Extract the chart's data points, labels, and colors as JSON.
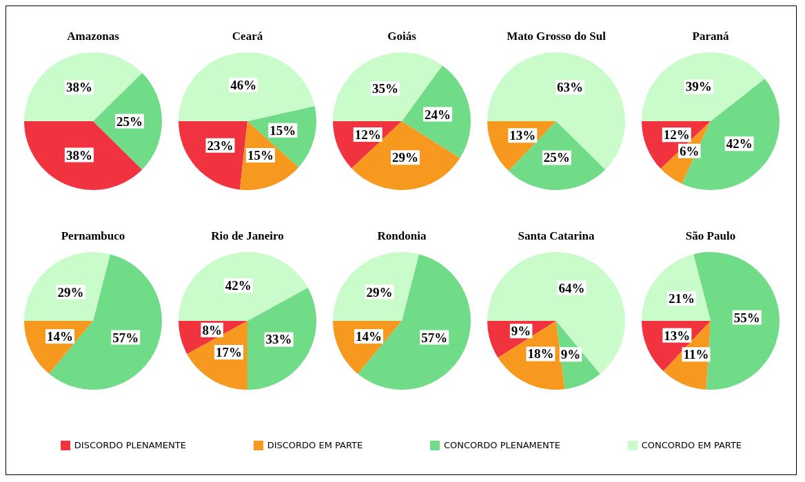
{
  "chart_data": [
    {
      "type": "pie",
      "title": "Amazonas",
      "categories": [
        "DISCORDO PLENAMENTE",
        "DISCORDO EM PARTE",
        "CONCORDO PLENAMENTE",
        "CONCORDO EM PARTE"
      ],
      "values": [
        38,
        0,
        25,
        38
      ],
      "value_labels": [
        "38%",
        null,
        "25%",
        "38%"
      ],
      "colors": [
        "#f0333f",
        "#f7991f",
        "#70dc87",
        "#c9fbcb"
      ],
      "legend": "bottom"
    },
    {
      "type": "pie",
      "title": "Ceará",
      "categories": [
        null,
        null,
        null,
        null
      ],
      "values": [
        23,
        15,
        15,
        46
      ],
      "value_labels": [
        "23%",
        "15%",
        "15%",
        "46%"
      ],
      "colors": [
        "#f0333f",
        "#f7991f",
        "#70dc87",
        "#c9fbcb"
      ]
    },
    {
      "type": "pie",
      "title": "Goiás",
      "categories": [
        null,
        null,
        null,
        null
      ],
      "values": [
        12,
        29,
        24,
        35
      ],
      "value_labels": [
        "12%",
        "29%",
        "24%",
        "35%"
      ],
      "colors": [
        "#f0333f",
        "#f7991f",
        "#70dc87",
        "#c9fbcb"
      ]
    },
    {
      "type": "pie",
      "title": "Mato Grosso do Sul",
      "categories": [
        null,
        null,
        null,
        null
      ],
      "values": [
        0,
        13,
        25,
        63
      ],
      "value_labels": [
        null,
        "13%",
        "25%",
        "63%"
      ],
      "colors": [
        "#f0333f",
        "#f7991f",
        "#70dc87",
        "#c9fbcb"
      ]
    },
    {
      "type": "pie",
      "title": "Paraná",
      "categories": [
        null,
        null,
        null,
        null
      ],
      "values": [
        12,
        6,
        42,
        39
      ],
      "value_labels": [
        "12%",
        "6%",
        "42%",
        "39%"
      ],
      "colors": [
        "#f0333f",
        "#f7991f",
        "#70dc87",
        "#c9fbcb"
      ]
    },
    {
      "type": "pie",
      "title": "Pernambuco",
      "categories": [
        null,
        null,
        null,
        null
      ],
      "values": [
        0,
        14,
        57,
        29
      ],
      "value_labels": [
        null,
        "14%",
        "57%",
        "29%"
      ],
      "colors": [
        "#f0333f",
        "#f7991f",
        "#70dc87",
        "#c9fbcb"
      ]
    },
    {
      "type": "pie",
      "title": "Rio de Janeiro",
      "categories": [
        null,
        null,
        null,
        null
      ],
      "values": [
        8,
        17,
        33,
        42
      ],
      "value_labels": [
        "8%",
        "17%",
        "33%",
        "42%"
      ],
      "colors": [
        "#f0333f",
        "#f7991f",
        "#70dc87",
        "#c9fbcb"
      ]
    },
    {
      "type": "pie",
      "title": "Rondonia",
      "categories": [
        null,
        null,
        null,
        null
      ],
      "values": [
        0,
        14,
        57,
        29
      ],
      "value_labels": [
        null,
        "14%",
        "57%",
        "29%"
      ],
      "colors": [
        "#f0333f",
        "#f7991f",
        "#70dc87",
        "#c9fbcb"
      ]
    },
    {
      "type": "pie",
      "title": "Santa Catarina",
      "categories": [
        null,
        null,
        null,
        null
      ],
      "values": [
        9,
        18,
        9,
        64
      ],
      "value_labels": [
        "9%",
        "18%",
        "9%",
        "64%"
      ],
      "colors": [
        "#f0333f",
        "#f7991f",
        "#70dc87",
        "#c9fbcb"
      ]
    },
    {
      "type": "pie",
      "title": "São Paulo",
      "categories": [
        null,
        null,
        null,
        null
      ],
      "values": [
        13,
        11,
        55,
        21
      ],
      "value_labels": [
        "13%",
        "11%",
        "55%",
        "21%"
      ],
      "colors": [
        "#f0333f",
        "#f7991f",
        "#70dc87",
        "#c9fbcb"
      ]
    }
  ]
}
